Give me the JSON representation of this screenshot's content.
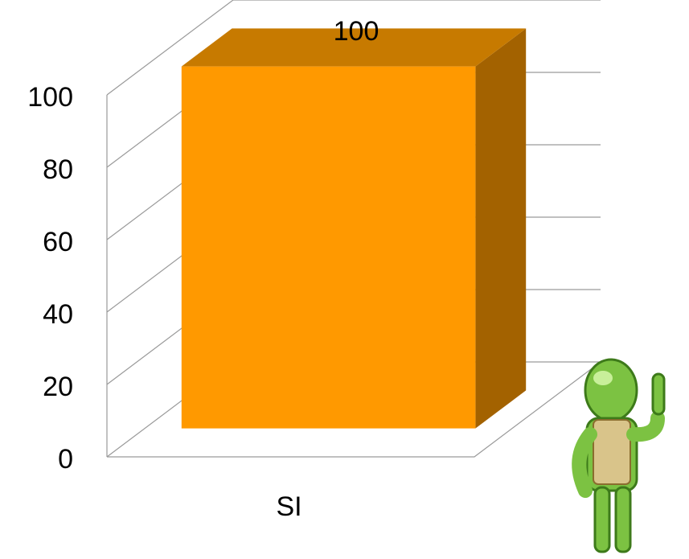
{
  "chart_data": {
    "type": "bar3d",
    "categories": [
      "SI"
    ],
    "values": [
      100
    ],
    "color": "#FF9900",
    "ylim": [
      0,
      100
    ],
    "yticks": [
      0,
      20,
      40,
      60,
      80,
      100
    ],
    "grid": true
  }
}
